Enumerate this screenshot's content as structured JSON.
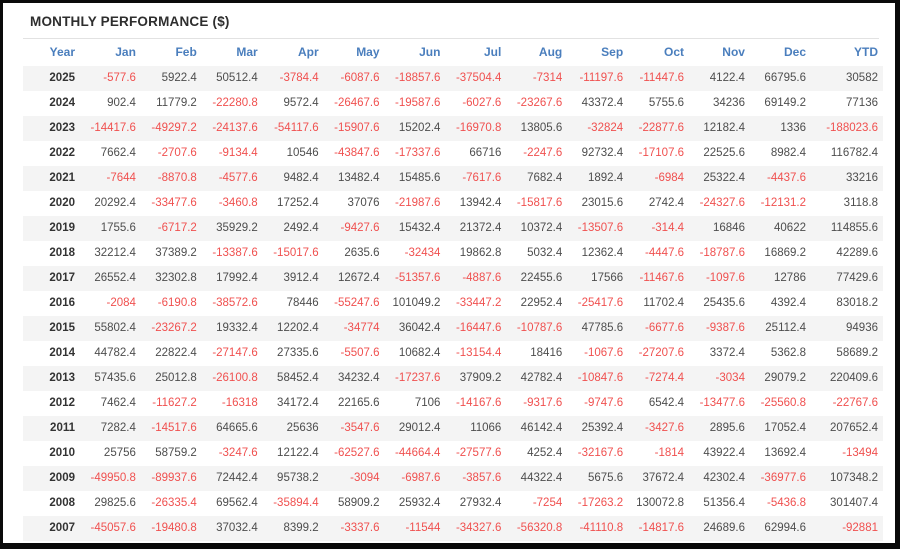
{
  "title": "MONTHLY PERFORMANCE ($)",
  "colors": {
    "header_blue": "#4a7ebd",
    "negative_red": "#f0504f",
    "value_text": "#4d4d4d",
    "year_text": "#333333",
    "row_stripe": "#f4f4f4"
  },
  "table": {
    "columns": [
      "Year",
      "Jan",
      "Feb",
      "Mar",
      "Apr",
      "May",
      "Jun",
      "Jul",
      "Aug",
      "Sep",
      "Oct",
      "Nov",
      "Dec",
      "YTD"
    ],
    "rows": [
      {
        "year": "2025",
        "values": [
          "-577.6",
          "5922.4",
          "50512.4",
          "-3784.4",
          "-6087.6",
          "-18857.6",
          "-37504.4",
          "-7314",
          "-11197.6",
          "-11447.6",
          "4122.4",
          "66795.6",
          "30582"
        ]
      },
      {
        "year": "2024",
        "values": [
          "902.4",
          "11779.2",
          "-22280.8",
          "9572.4",
          "-26467.6",
          "-19587.6",
          "-6027.6",
          "-23267.6",
          "43372.4",
          "5755.6",
          "34236",
          "69149.2",
          "77136"
        ]
      },
      {
        "year": "2023",
        "values": [
          "-14417.6",
          "-49297.2",
          "-24137.6",
          "-54117.6",
          "-15907.6",
          "15202.4",
          "-16970.8",
          "13805.6",
          "-32824",
          "-22877.6",
          "12182.4",
          "1336",
          "-188023.6"
        ]
      },
      {
        "year": "2022",
        "values": [
          "7662.4",
          "-2707.6",
          "-9134.4",
          "10546",
          "-43847.6",
          "-17337.6",
          "66716",
          "-2247.6",
          "92732.4",
          "-17107.6",
          "22525.6",
          "8982.4",
          "116782.4"
        ]
      },
      {
        "year": "2021",
        "values": [
          "-7644",
          "-8870.8",
          "-4577.6",
          "9482.4",
          "13482.4",
          "15485.6",
          "-7617.6",
          "7682.4",
          "1892.4",
          "-6984",
          "25322.4",
          "-4437.6",
          "33216"
        ]
      },
      {
        "year": "2020",
        "values": [
          "20292.4",
          "-33477.6",
          "-3460.8",
          "17252.4",
          "37076",
          "-21987.6",
          "13942.4",
          "-15817.6",
          "23015.6",
          "2742.4",
          "-24327.6",
          "-12131.2",
          "3118.8"
        ]
      },
      {
        "year": "2019",
        "values": [
          "1755.6",
          "-6717.2",
          "35929.2",
          "2492.4",
          "-9427.6",
          "15432.4",
          "21372.4",
          "10372.4",
          "-13507.6",
          "-314.4",
          "16846",
          "40622",
          "114855.6"
        ]
      },
      {
        "year": "2018",
        "values": [
          "32212.4",
          "37389.2",
          "-13387.6",
          "-15017.6",
          "2635.6",
          "-32434",
          "19862.8",
          "5032.4",
          "12362.4",
          "-4447.6",
          "-18787.6",
          "16869.2",
          "42289.6"
        ]
      },
      {
        "year": "2017",
        "values": [
          "26552.4",
          "32302.8",
          "17992.4",
          "3912.4",
          "12672.4",
          "-51357.6",
          "-4887.6",
          "22455.6",
          "17566",
          "-11467.6",
          "-1097.6",
          "12786",
          "77429.6"
        ]
      },
      {
        "year": "2016",
        "values": [
          "-2084",
          "-6190.8",
          "-38572.6",
          "78446",
          "-55247.6",
          "101049.2",
          "-33447.2",
          "22952.4",
          "-25417.6",
          "11702.4",
          "25435.6",
          "4392.4",
          "83018.2"
        ]
      },
      {
        "year": "2015",
        "values": [
          "55802.4",
          "-23267.2",
          "19332.4",
          "12202.4",
          "-34774",
          "36042.4",
          "-16447.6",
          "-10787.6",
          "47785.6",
          "-6677.6",
          "-9387.6",
          "25112.4",
          "94936"
        ]
      },
      {
        "year": "2014",
        "values": [
          "44782.4",
          "22822.4",
          "-27147.6",
          "27335.6",
          "-5507.6",
          "10682.4",
          "-13154.4",
          "18416",
          "-1067.6",
          "-27207.6",
          "3372.4",
          "5362.8",
          "58689.2"
        ]
      },
      {
        "year": "2013",
        "values": [
          "57435.6",
          "25012.8",
          "-26100.8",
          "58452.4",
          "34232.4",
          "-17237.6",
          "37909.2",
          "42782.4",
          "-10847.6",
          "-7274.4",
          "-3034",
          "29079.2",
          "220409.6"
        ]
      },
      {
        "year": "2012",
        "values": [
          "7462.4",
          "-11627.2",
          "-16318",
          "34172.4",
          "22165.6",
          "7106",
          "-14167.6",
          "-9317.6",
          "-9747.6",
          "6542.4",
          "-13477.6",
          "-25560.8",
          "-22767.6"
        ]
      },
      {
        "year": "2011",
        "values": [
          "7282.4",
          "-14517.6",
          "64665.6",
          "25636",
          "-3547.6",
          "29012.4",
          "11066",
          "46142.4",
          "25392.4",
          "-3427.6",
          "2895.6",
          "17052.4",
          "207652.4"
        ]
      },
      {
        "year": "2010",
        "values": [
          "25756",
          "58759.2",
          "-3247.6",
          "12122.4",
          "-62527.6",
          "-44664.4",
          "-27577.6",
          "4252.4",
          "-32167.6",
          "-1814",
          "43922.4",
          "13692.4",
          "-13494"
        ]
      },
      {
        "year": "2009",
        "values": [
          "-49950.8",
          "-89937.6",
          "72442.4",
          "95738.2",
          "-3094",
          "-6987.6",
          "-3857.6",
          "44322.4",
          "5675.6",
          "37672.4",
          "42302.4",
          "-36977.6",
          "107348.2"
        ]
      },
      {
        "year": "2008",
        "values": [
          "29825.6",
          "-26335.4",
          "69562.4",
          "-35894.4",
          "58909.2",
          "25932.4",
          "27932.4",
          "-7254",
          "-17263.2",
          "130072.8",
          "51356.4",
          "-5436.8",
          "301407.4"
        ]
      },
      {
        "year": "2007",
        "values": [
          "-45057.6",
          "-19480.8",
          "37032.4",
          "8399.2",
          "-3337.6",
          "-11544",
          "-34327.6",
          "-56320.8",
          "-41110.8",
          "-14817.6",
          "24689.6",
          "62994.6",
          "-92881"
        ]
      }
    ]
  }
}
